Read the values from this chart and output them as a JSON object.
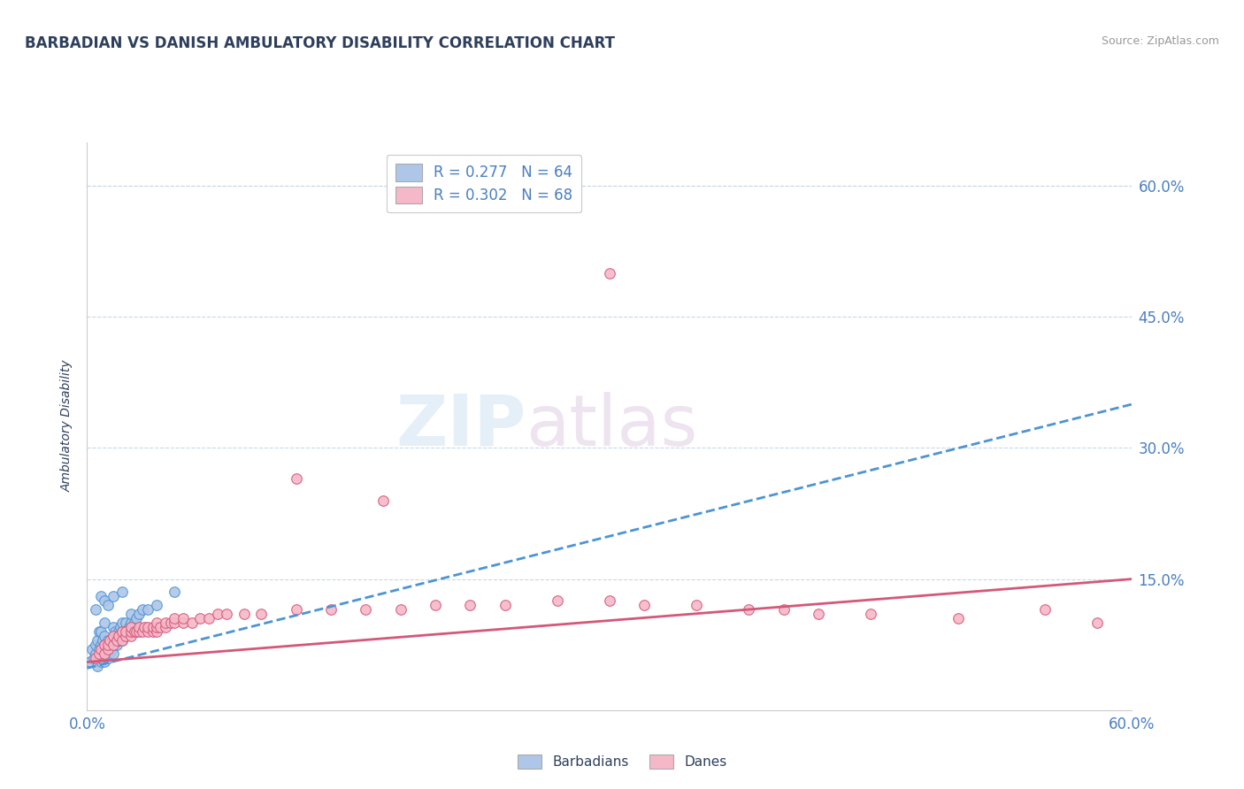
{
  "title": "BARBADIAN VS DANISH AMBULATORY DISABILITY CORRELATION CHART",
  "source": "Source: ZipAtlas.com",
  "ylabel": "Ambulatory Disability",
  "xlim": [
    0.0,
    0.6
  ],
  "ylim": [
    0.0,
    0.65
  ],
  "yticks": [
    0.15,
    0.3,
    0.45,
    0.6
  ],
  "xticks": [
    0.0,
    0.6
  ],
  "xtick_labels": [
    "0.0%",
    "60.0%"
  ],
  "ytick_labels": [
    "15.0%",
    "30.0%",
    "45.0%",
    "60.0%"
  ],
  "background_color": "#ffffff",
  "watermark_zip": "ZIP",
  "watermark_atlas": "atlas",
  "legend_R1": "R = 0.277",
  "legend_N1": "N = 64",
  "legend_R2": "R = 0.302",
  "legend_N2": "N = 68",
  "barbadian_color": "#aec6e8",
  "danish_color": "#f5b8c8",
  "barbadian_line_color": "#4d94d5",
  "danish_line_color": "#d45878",
  "title_color": "#2e3f5c",
  "axis_label_color": "#2e3f5c",
  "tick_color": "#4a7fc1",
  "grid_color": "#c8d8e8",
  "barbadian_scatter": [
    [
      0.002,
      0.055
    ],
    [
      0.003,
      0.07
    ],
    [
      0.004,
      0.06
    ],
    [
      0.005,
      0.065
    ],
    [
      0.005,
      0.075
    ],
    [
      0.006,
      0.05
    ],
    [
      0.006,
      0.08
    ],
    [
      0.007,
      0.06
    ],
    [
      0.007,
      0.07
    ],
    [
      0.007,
      0.09
    ],
    [
      0.008,
      0.055
    ],
    [
      0.008,
      0.065
    ],
    [
      0.008,
      0.075
    ],
    [
      0.008,
      0.09
    ],
    [
      0.009,
      0.07
    ],
    [
      0.009,
      0.08
    ],
    [
      0.01,
      0.055
    ],
    [
      0.01,
      0.065
    ],
    [
      0.01,
      0.075
    ],
    [
      0.01,
      0.085
    ],
    [
      0.01,
      0.1
    ],
    [
      0.011,
      0.065
    ],
    [
      0.011,
      0.075
    ],
    [
      0.012,
      0.06
    ],
    [
      0.012,
      0.07
    ],
    [
      0.012,
      0.08
    ],
    [
      0.013,
      0.065
    ],
    [
      0.013,
      0.075
    ],
    [
      0.014,
      0.07
    ],
    [
      0.014,
      0.08
    ],
    [
      0.015,
      0.065
    ],
    [
      0.015,
      0.075
    ],
    [
      0.015,
      0.085
    ],
    [
      0.015,
      0.095
    ],
    [
      0.016,
      0.08
    ],
    [
      0.016,
      0.09
    ],
    [
      0.017,
      0.075
    ],
    [
      0.017,
      0.085
    ],
    [
      0.018,
      0.08
    ],
    [
      0.018,
      0.09
    ],
    [
      0.019,
      0.085
    ],
    [
      0.019,
      0.095
    ],
    [
      0.02,
      0.08
    ],
    [
      0.02,
      0.09
    ],
    [
      0.02,
      0.1
    ],
    [
      0.021,
      0.085
    ],
    [
      0.022,
      0.09
    ],
    [
      0.022,
      0.1
    ],
    [
      0.024,
      0.095
    ],
    [
      0.025,
      0.1
    ],
    [
      0.025,
      0.11
    ],
    [
      0.027,
      0.1
    ],
    [
      0.028,
      0.105
    ],
    [
      0.03,
      0.11
    ],
    [
      0.032,
      0.115
    ],
    [
      0.005,
      0.115
    ],
    [
      0.008,
      0.13
    ],
    [
      0.01,
      0.125
    ],
    [
      0.012,
      0.12
    ],
    [
      0.015,
      0.13
    ],
    [
      0.02,
      0.135
    ],
    [
      0.035,
      0.115
    ],
    [
      0.04,
      0.12
    ],
    [
      0.05,
      0.135
    ]
  ],
  "danish_scatter": [
    [
      0.005,
      0.06
    ],
    [
      0.007,
      0.065
    ],
    [
      0.008,
      0.07
    ],
    [
      0.01,
      0.065
    ],
    [
      0.01,
      0.075
    ],
    [
      0.012,
      0.07
    ],
    [
      0.012,
      0.075
    ],
    [
      0.013,
      0.08
    ],
    [
      0.015,
      0.075
    ],
    [
      0.015,
      0.085
    ],
    [
      0.017,
      0.08
    ],
    [
      0.018,
      0.085
    ],
    [
      0.02,
      0.08
    ],
    [
      0.02,
      0.09
    ],
    [
      0.022,
      0.085
    ],
    [
      0.022,
      0.09
    ],
    [
      0.025,
      0.085
    ],
    [
      0.025,
      0.09
    ],
    [
      0.025,
      0.095
    ],
    [
      0.027,
      0.09
    ],
    [
      0.028,
      0.09
    ],
    [
      0.03,
      0.09
    ],
    [
      0.03,
      0.095
    ],
    [
      0.032,
      0.09
    ],
    [
      0.033,
      0.095
    ],
    [
      0.035,
      0.09
    ],
    [
      0.035,
      0.095
    ],
    [
      0.038,
      0.09
    ],
    [
      0.038,
      0.095
    ],
    [
      0.04,
      0.09
    ],
    [
      0.04,
      0.095
    ],
    [
      0.04,
      0.1
    ],
    [
      0.042,
      0.095
    ],
    [
      0.045,
      0.095
    ],
    [
      0.045,
      0.1
    ],
    [
      0.048,
      0.1
    ],
    [
      0.05,
      0.1
    ],
    [
      0.05,
      0.105
    ],
    [
      0.055,
      0.1
    ],
    [
      0.055,
      0.105
    ],
    [
      0.06,
      0.1
    ],
    [
      0.065,
      0.105
    ],
    [
      0.07,
      0.105
    ],
    [
      0.075,
      0.11
    ],
    [
      0.08,
      0.11
    ],
    [
      0.09,
      0.11
    ],
    [
      0.1,
      0.11
    ],
    [
      0.12,
      0.115
    ],
    [
      0.14,
      0.115
    ],
    [
      0.16,
      0.115
    ],
    [
      0.18,
      0.115
    ],
    [
      0.2,
      0.12
    ],
    [
      0.22,
      0.12
    ],
    [
      0.24,
      0.12
    ],
    [
      0.27,
      0.125
    ],
    [
      0.3,
      0.125
    ],
    [
      0.32,
      0.12
    ],
    [
      0.35,
      0.12
    ],
    [
      0.38,
      0.115
    ],
    [
      0.4,
      0.115
    ],
    [
      0.42,
      0.11
    ],
    [
      0.45,
      0.11
    ],
    [
      0.5,
      0.105
    ],
    [
      0.55,
      0.115
    ],
    [
      0.58,
      0.1
    ],
    [
      0.12,
      0.265
    ],
    [
      0.17,
      0.24
    ],
    [
      0.3,
      0.5
    ]
  ],
  "barbadian_trendline": [
    [
      0.0,
      0.048
    ],
    [
      0.6,
      0.35
    ]
  ],
  "danish_trendline": [
    [
      0.0,
      0.055
    ],
    [
      0.6,
      0.15
    ]
  ]
}
